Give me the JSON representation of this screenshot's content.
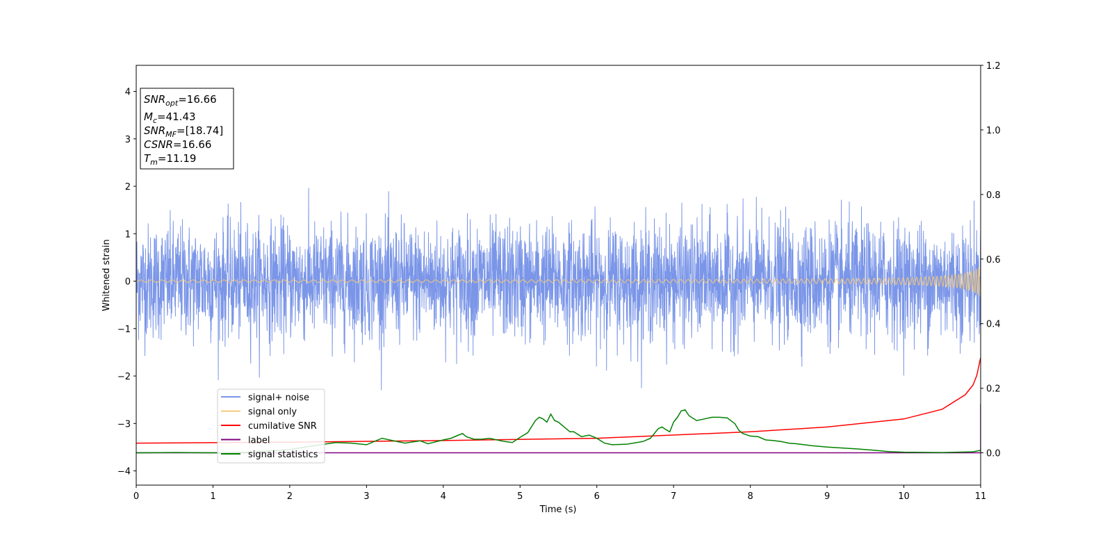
{
  "chart_data": {
    "type": "line",
    "xlabel": "Time (s)",
    "ylabel": "Whitened strain",
    "xlim": [
      0,
      11
    ],
    "ylim": [
      -4.3,
      4.55
    ],
    "y2lim": [
      -0.1,
      1.2
    ],
    "xticks": [
      "0",
      "1",
      "2",
      "3",
      "4",
      "5",
      "6",
      "7",
      "8",
      "9",
      "10",
      "11"
    ],
    "yticks": [
      "4",
      "3",
      "2",
      "1",
      "0",
      "−1",
      "−2",
      "−3",
      "−4"
    ],
    "y2ticks": [
      "1.2",
      "1.0",
      "0.8",
      "0.6",
      "0.4",
      "0.2",
      "0.0"
    ],
    "legend_position": "lower-left",
    "info_box": {
      "snr_opt": {
        "sym": "SNR",
        "sub": "opt",
        "value": "=16.66"
      },
      "mc": {
        "sym": "M",
        "sub": "c",
        "value": "=41.43"
      },
      "snr_mf": {
        "sym": "SNR",
        "sub": "MF",
        "value": "=[18.74]"
      },
      "csnr": {
        "sym": "CSNR",
        "sub": "",
        "value": "=16.66"
      },
      "tm": {
        "sym": "T",
        "sub": "m",
        "value": "=11.19"
      }
    },
    "series": [
      {
        "name": "signal+ noise",
        "color": "#7b96e8",
        "axis": "left",
        "description_values": {
          "amplitude_range": [
            -2.3,
            2.25
          ]
        }
      },
      {
        "name": "signal only",
        "color": "#f5c97a",
        "axis": "left"
      },
      {
        "name": "cumilative SNR",
        "color": "#ff0000",
        "axis": "right",
        "x": [
          0,
          2,
          4,
          6,
          8,
          9,
          10,
          10.5,
          10.8,
          10.9,
          10.95,
          11.0
        ],
        "y": [
          0.03,
          0.033,
          0.038,
          0.045,
          0.065,
          0.08,
          0.105,
          0.135,
          0.18,
          0.21,
          0.24,
          0.295
        ]
      },
      {
        "name": "label",
        "color": "#800080",
        "axis": "right",
        "x": [
          0,
          10.99,
          11.0,
          11.0
        ],
        "y": [
          0.0,
          0.0,
          0.0,
          0.15
        ]
      },
      {
        "name": "signal statistics",
        "color": "#008000",
        "axis": "right",
        "x": [
          0,
          0.5,
          1,
          1.5,
          2,
          2.2,
          2.4,
          2.6,
          2.8,
          3.0,
          3.2,
          3.3,
          3.5,
          3.7,
          3.8,
          4.0,
          4.1,
          4.2,
          4.25,
          4.3,
          4.4,
          4.5,
          4.6,
          4.7,
          4.8,
          4.9,
          5.0,
          5.1,
          5.2,
          5.25,
          5.3,
          5.35,
          5.4,
          5.45,
          5.5,
          5.6,
          5.65,
          5.7,
          5.8,
          5.9,
          6.0,
          6.1,
          6.2,
          6.4,
          6.6,
          6.7,
          6.8,
          6.85,
          6.9,
          6.95,
          7.0,
          7.05,
          7.1,
          7.15,
          7.2,
          7.3,
          7.4,
          7.5,
          7.6,
          7.7,
          7.8,
          7.85,
          7.9,
          8.0,
          8.1,
          8.2,
          8.3,
          8.4,
          8.5,
          8.6,
          8.7,
          8.8,
          8.9,
          9.0,
          9.2,
          9.4,
          9.6,
          9.8,
          10.0,
          10.5,
          10.9,
          11.0
        ],
        "y": [
          0.0,
          0.001,
          0.0,
          0.002,
          0.01,
          0.018,
          0.025,
          0.032,
          0.03,
          0.025,
          0.045,
          0.04,
          0.03,
          0.037,
          0.028,
          0.04,
          0.045,
          0.055,
          0.06,
          0.05,
          0.042,
          0.042,
          0.045,
          0.04,
          0.035,
          0.032,
          0.048,
          0.062,
          0.1,
          0.11,
          0.105,
          0.095,
          0.12,
          0.1,
          0.095,
          0.075,
          0.065,
          0.065,
          0.05,
          0.055,
          0.045,
          0.03,
          0.025,
          0.027,
          0.035,
          0.045,
          0.075,
          0.08,
          0.072,
          0.065,
          0.095,
          0.11,
          0.13,
          0.133,
          0.115,
          0.1,
          0.105,
          0.11,
          0.11,
          0.108,
          0.09,
          0.07,
          0.06,
          0.052,
          0.05,
          0.04,
          0.038,
          0.035,
          0.03,
          0.028,
          0.025,
          0.022,
          0.02,
          0.018,
          0.015,
          0.012,
          0.008,
          0.004,
          0.002,
          0.001,
          0.003,
          0.008
        ]
      }
    ]
  }
}
